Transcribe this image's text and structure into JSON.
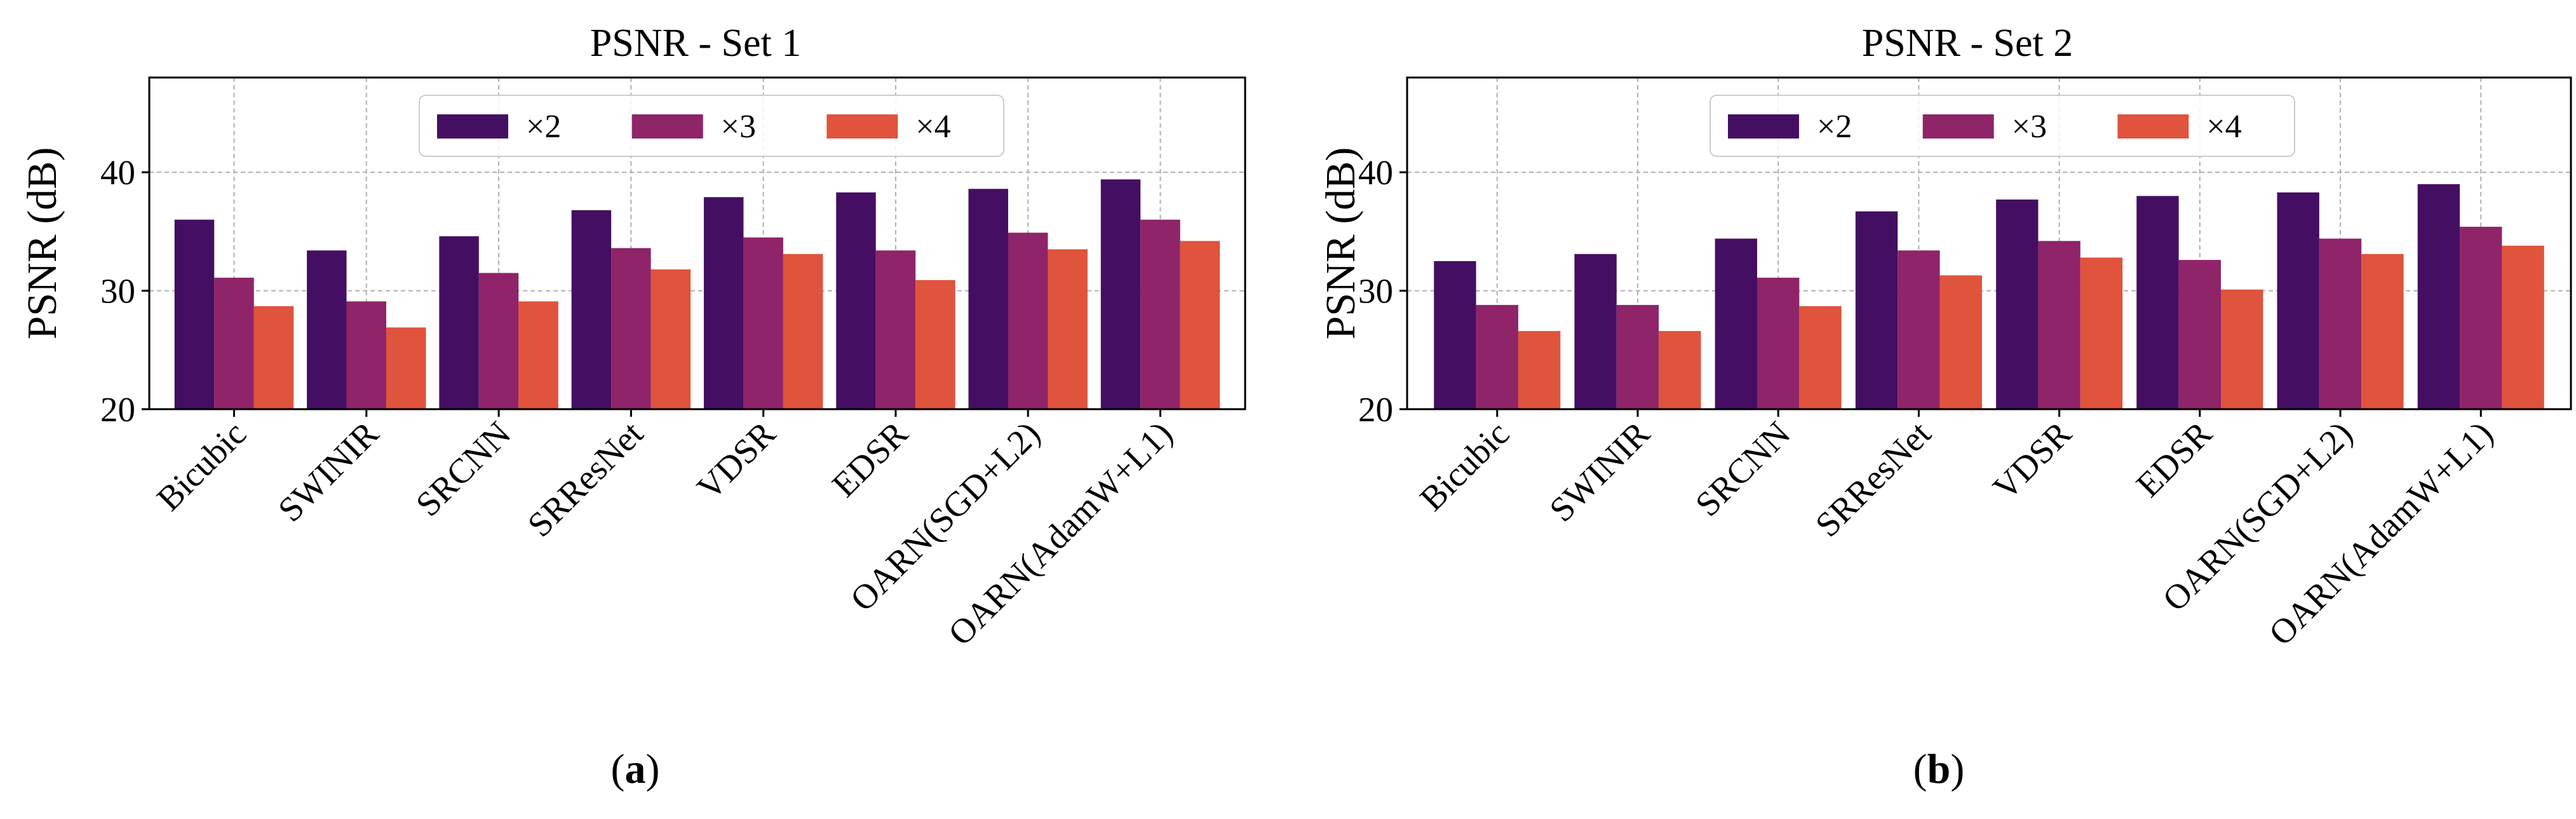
{
  "chart_data": [
    {
      "type": "bar",
      "title": "PSNR - Set 1",
      "xlabel": "",
      "ylabel": "PSNR (dB)",
      "ylim": [
        20,
        48
      ],
      "yticks": [
        20,
        30,
        40
      ],
      "grid": true,
      "legend_position": "top-center",
      "categories": [
        "Bicubic",
        "SWINIR",
        "SRCNN",
        "SRResNet",
        "VDSR",
        "EDSR",
        "OARN(SGD+L2)",
        "OARN(AdamW+L1)"
      ],
      "series": [
        {
          "name": "×2",
          "color": "#440f62",
          "values": [
            36.0,
            33.4,
            34.6,
            36.8,
            37.9,
            38.3,
            38.6,
            39.4
          ]
        },
        {
          "name": "×3",
          "color": "#8f2469",
          "values": [
            31.1,
            29.1,
            31.5,
            33.6,
            34.5,
            33.4,
            34.9,
            36.0
          ]
        },
        {
          "name": "×4",
          "color": "#e0533c",
          "values": [
            28.7,
            26.9,
            29.1,
            31.8,
            33.1,
            30.9,
            33.5,
            34.2
          ]
        }
      ],
      "caption": "a"
    },
    {
      "type": "bar",
      "title": "PSNR - Set 2",
      "xlabel": "",
      "ylabel": "PSNR (dB)",
      "ylim": [
        20,
        48
      ],
      "yticks": [
        20,
        30,
        40
      ],
      "grid": true,
      "legend_position": "top-center",
      "categories": [
        "Bicubic",
        "SWINIR",
        "SRCNN",
        "SRResNet",
        "VDSR",
        "EDSR",
        "OARN(SGD+L2)",
        "OARN(AdamW+L1)"
      ],
      "series": [
        {
          "name": "×2",
          "color": "#440f62",
          "values": [
            32.5,
            33.1,
            34.4,
            36.7,
            37.7,
            38.0,
            38.3,
            39.0
          ]
        },
        {
          "name": "×3",
          "color": "#8f2469",
          "values": [
            28.8,
            28.8,
            31.1,
            33.4,
            34.2,
            32.6,
            34.4,
            35.4
          ]
        },
        {
          "name": "×4",
          "color": "#e0533c",
          "values": [
            26.6,
            26.6,
            28.7,
            31.3,
            32.8,
            30.1,
            33.1,
            33.8
          ]
        }
      ],
      "caption": "b"
    }
  ]
}
